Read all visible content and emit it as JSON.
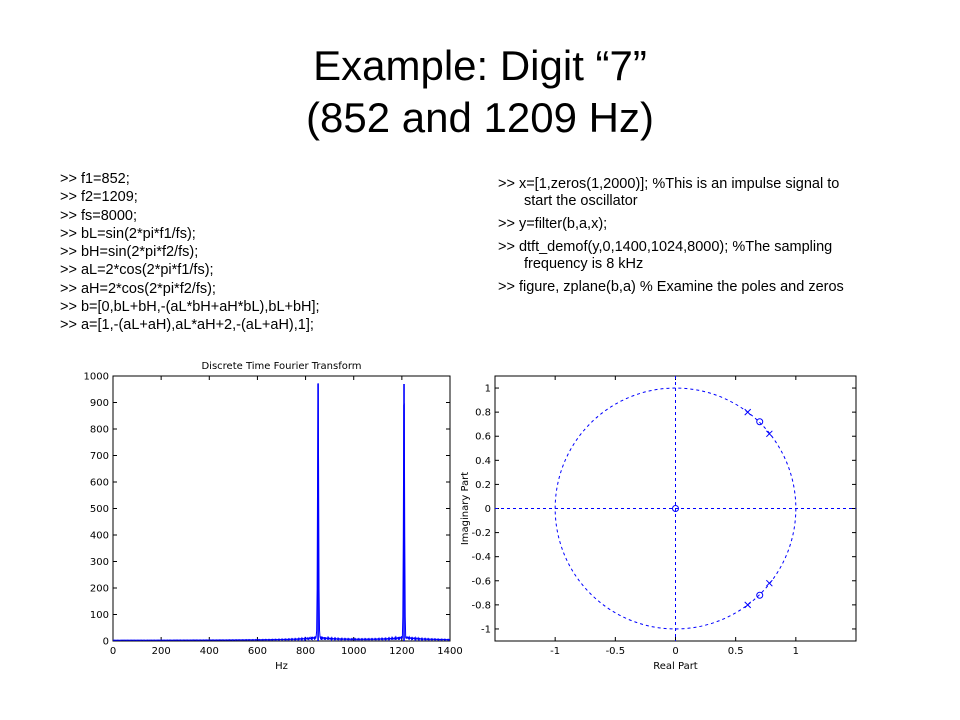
{
  "slide": {
    "title_line1": "Example: Digit “7”",
    "title_line2": "(852 and 1209 Hz)"
  },
  "code_left": [
    ">> f1=852;",
    ">> f2=1209;",
    ">> fs=8000;",
    ">> bL=sin(2*pi*f1/fs);",
    ">> bH=sin(2*pi*f2/fs);",
    ">> aL=2*cos(2*pi*f1/fs);",
    ">> aH=2*cos(2*pi*f2/fs);",
    ">> b=[0,bL+bH,-(aL*bH+aH*bL),bL+bH];",
    ">> a=[1,-(aL+aH),aL*aH+2,-(aL+aH),1];"
  ],
  "code_right": [
    {
      "main": ">> x=[1,zeros(1,2000)];      %This is an impulse signal to",
      "cont": "start the oscillator"
    },
    {
      "main": ">> y=filter(b,a,x);",
      "cont": ""
    },
    {
      "main": ">> dtft_demof(y,0,1400,1024,8000);  %The sampling",
      "cont": "frequency is 8 kHz"
    },
    {
      "main": ">> figure, zplane(b,a)  % Examine the poles and zeros",
      "cont": ""
    }
  ],
  "chart_data": [
    {
      "type": "line",
      "title": "Discrete Time Fourier Transform",
      "xlabel": "Hz",
      "ylabel": "",
      "xlim": [
        0,
        1400
      ],
      "ylim": [
        0,
        1000
      ],
      "xticks": [
        0,
        200,
        400,
        600,
        800,
        1000,
        1200,
        1400
      ],
      "yticks": [
        0,
        100,
        200,
        300,
        400,
        500,
        600,
        700,
        800,
        900,
        1000
      ],
      "color": "#0000ff",
      "peaks": [
        {
          "x": 852,
          "y": 970
        },
        {
          "x": 1209,
          "y": 970
        }
      ]
    },
    {
      "type": "scatter",
      "title": "",
      "xlabel": "Real Part",
      "ylabel": "Imaginary Part",
      "xlim": [
        -1.5,
        1.5
      ],
      "ylim": [
        -1.1,
        1.1
      ],
      "xticks": [
        -1,
        -0.5,
        0,
        0.5,
        1
      ],
      "yticks": [
        1,
        0.8,
        0.6,
        0.4,
        0.2,
        0,
        -0.2,
        -0.4,
        -0.6,
        -0.8,
        -1
      ],
      "unit_circle": true,
      "color": "#0000ff",
      "poles": [
        {
          "x": 0.6,
          "y": 0.8
        },
        {
          "x": 0.6,
          "y": -0.8
        },
        {
          "x": 0.78,
          "y": 0.62
        },
        {
          "x": 0.78,
          "y": -0.62
        }
      ],
      "zeros": [
        {
          "x": 0.7,
          "y": 0.72
        },
        {
          "x": 0.7,
          "y": -0.72
        },
        {
          "x": 0,
          "y": 0
        }
      ]
    }
  ]
}
